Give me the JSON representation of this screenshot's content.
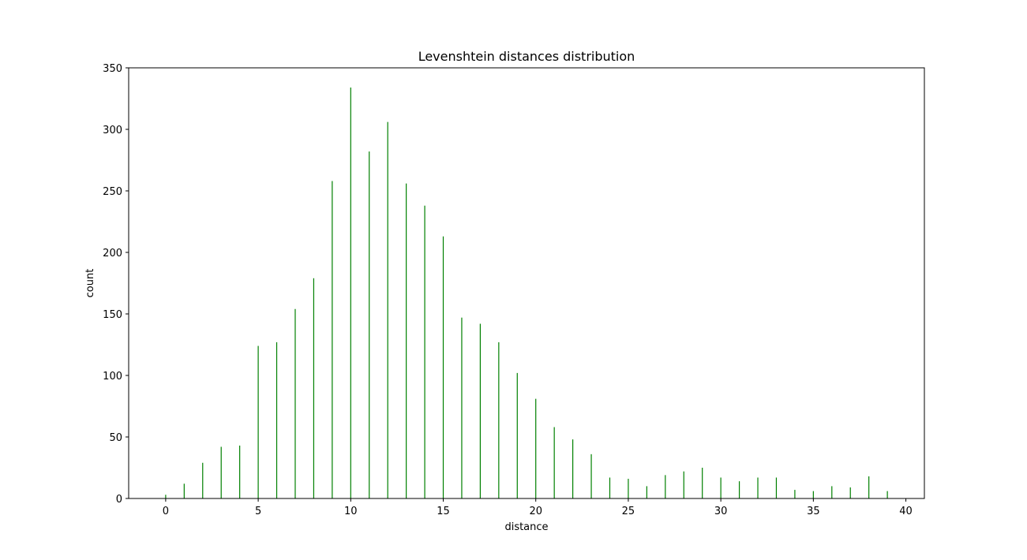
{
  "chart_data": {
    "type": "bar",
    "title": "Levenshtein distances distribution",
    "xlabel": "distance",
    "ylabel": "count",
    "xlim": [
      -2,
      41
    ],
    "ylim": [
      0,
      350
    ],
    "xticks": [
      0,
      5,
      10,
      15,
      20,
      25,
      30,
      35,
      40
    ],
    "yticks": [
      0,
      50,
      100,
      150,
      200,
      250,
      300,
      350
    ],
    "bar_color": "#008000",
    "grid": false,
    "legend": "none",
    "series": [
      {
        "x": [
          0,
          1,
          2,
          3,
          4,
          5,
          6,
          7,
          8,
          9,
          10,
          11,
          12,
          13,
          14,
          15,
          16,
          17,
          18,
          19,
          20,
          21,
          22,
          23,
          24,
          25,
          26,
          27,
          28,
          29,
          30,
          31,
          32,
          33,
          34,
          35,
          36,
          37,
          38,
          39
        ],
        "values": [
          3,
          12,
          29,
          42,
          43,
          124,
          127,
          154,
          179,
          258,
          334,
          282,
          306,
          256,
          238,
          213,
          147,
          142,
          127,
          102,
          81,
          58,
          48,
          36,
          17,
          16,
          10,
          19,
          22,
          25,
          17,
          14,
          17,
          17,
          7,
          6,
          10,
          9,
          18,
          6
        ]
      }
    ]
  }
}
